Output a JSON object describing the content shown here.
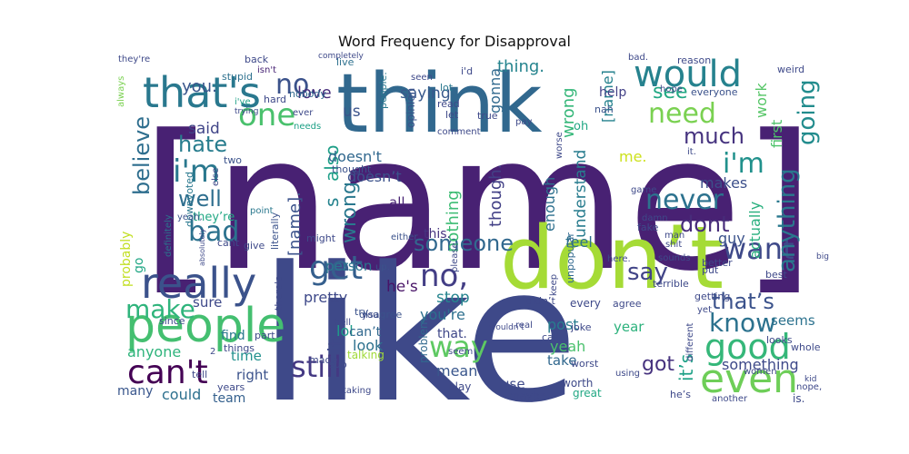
{
  "chart_data": {
    "type": "wordcloud",
    "title": "Word Frequency for Disapproval",
    "background": "#ffffff",
    "words": [
      {
        "text": "[name]",
        "color": "#482173"
      },
      {
        "text": "like",
        "color": "#3e4989"
      },
      {
        "text": "think",
        "color": "#31688e"
      },
      {
        "text": "don’t",
        "color": "#a5db36"
      },
      {
        "text": "people",
        "color": "#44bf70"
      },
      {
        "text": "would",
        "color": "#26828e"
      },
      {
        "text": "that's",
        "color": "#29788e"
      },
      {
        "text": "really",
        "color": "#3b528b"
      },
      {
        "text": "even",
        "color": "#6ece58"
      },
      {
        "text": "good",
        "color": "#35b779"
      },
      {
        "text": "can't",
        "color": "#440154"
      },
      {
        "text": "get",
        "color": "#355f8d"
      },
      {
        "text": "one",
        "color": "#4ac16d"
      },
      {
        "text": "no.",
        "color": "#3b528b"
      },
      {
        "text": "no,",
        "color": "#433e85"
      },
      {
        "text": "i'm",
        "color": "#2a788e"
      },
      {
        "text": "i'm",
        "color": "#21918c"
      },
      {
        "text": "want",
        "color": "#3e4989"
      },
      {
        "text": "need",
        "color": "#7ad151"
      },
      {
        "text": "never",
        "color": "#2c728e"
      },
      {
        "text": "still",
        "color": "#443983"
      },
      {
        "text": "way",
        "color": "#5ec962"
      },
      {
        "text": "know",
        "color": "#2c728e"
      },
      {
        "text": "see",
        "color": "#22a884"
      },
      {
        "text": "bad",
        "color": "#2c728e"
      },
      {
        "text": "that’s",
        "color": "#3b528b"
      },
      {
        "text": "say",
        "color": "#414487"
      },
      {
        "text": "going",
        "color": "#228c8d"
      },
      {
        "text": "anything",
        "color": "#2a788e"
      },
      {
        "text": "make",
        "color": "#2fb47c"
      },
      {
        "text": "someone",
        "color": "#31688e"
      },
      {
        "text": "dont",
        "color": "#472c7a"
      },
      {
        "text": "much",
        "color": "#46337f"
      },
      {
        "text": "hate",
        "color": "#287d8e"
      },
      {
        "text": "believe",
        "color": "#2e6e8e"
      },
      {
        "text": "well",
        "color": "#2e6e8e"
      },
      {
        "text": "got",
        "color": "#46327e"
      },
      {
        "text": "it",
        "color": "#3f4889"
      },
      {
        "text": "it’s",
        "color": "#1fa187"
      },
      {
        "text": "s",
        "color": "#25838e"
      },
      {
        "text": "also",
        "color": "#1f9f88"
      },
      {
        "text": "wrong",
        "color": "#2a788e"
      },
      {
        "text": "wrong",
        "color": "#35b779"
      },
      {
        "text": "[name].",
        "color": "#3b528b"
      },
      {
        "text": "love",
        "color": "#472d7b"
      },
      {
        "text": "you.",
        "color": "#39558c"
      },
      {
        "text": "said",
        "color": "#404588"
      },
      {
        "text": "saying",
        "color": "#38588c"
      },
      {
        "text": "thing.",
        "color": "#25848e"
      },
      {
        "text": "gonna",
        "color": "#30698e"
      },
      {
        "text": "[name]",
        "color": "#26828e"
      },
      {
        "text": "us",
        "color": "#3a538b"
      },
      {
        "text": "doesn't",
        "color": "#31688e"
      },
      {
        "text": "doesn’t",
        "color": "#3b528b"
      },
      {
        "text": "nothing",
        "color": "#3dbc74"
      },
      {
        "text": "though.",
        "color": "#424086"
      },
      {
        "text": "enough",
        "color": "#2d708e"
      },
      {
        "text": "understand",
        "color": "#287c8e"
      },
      {
        "text": "actually",
        "color": "#2ab07f"
      },
      {
        "text": "first",
        "color": "#4ec36b"
      },
      {
        "text": "work",
        "color": "#56c667"
      },
      {
        "text": "makes",
        "color": "#3c4f8a"
      },
      {
        "text": "guy",
        "color": "#3b528b"
      },
      {
        "text": "feel",
        "color": "#2d718e"
      },
      {
        "text": "pretty",
        "color": "#3e4989"
      },
      {
        "text": "he's",
        "color": "#481467"
      },
      {
        "text": "stop",
        "color": "#25848e"
      },
      {
        "text": "this.",
        "color": "#46337f"
      },
      {
        "text": "person",
        "color": "#2a768e"
      },
      {
        "text": "all.",
        "color": "#482374"
      },
      {
        "text": "lol",
        "color": "#1e9c89"
      },
      {
        "text": "look",
        "color": "#2d718e"
      },
      {
        "text": "can’t",
        "color": "#31688e"
      },
      {
        "text": "that.",
        "color": "#3f4788"
      },
      {
        "text": "you're",
        "color": "#2d708e"
      },
      {
        "text": "mean",
        "color": "#39568c"
      },
      {
        "text": "post",
        "color": "#287c8e"
      },
      {
        "text": "yeah",
        "color": "#4ac16d"
      },
      {
        "text": "take",
        "color": "#31688e"
      },
      {
        "text": "use",
        "color": "#3e4a89"
      },
      {
        "text": "something",
        "color": "#3e4989"
      },
      {
        "text": "seems",
        "color": "#2c728e"
      },
      {
        "text": "year",
        "color": "#2db27d"
      },
      {
        "text": "right",
        "color": "#3b528b"
      },
      {
        "text": "time",
        "color": "#21908d"
      },
      {
        "text": "sure",
        "color": "#3e4989"
      },
      {
        "text": "find",
        "color": "#2a788e"
      },
      {
        "text": "could",
        "color": "#2d708e"
      },
      {
        "text": "team",
        "color": "#34608d"
      },
      {
        "text": "anyone",
        "color": "#2fb47c"
      },
      {
        "text": "many",
        "color": "#39568c"
      },
      {
        "text": "probably",
        "color": "#c2df23"
      },
      {
        "text": "go",
        "color": "#22a785"
      },
      {
        "text": "help",
        "color": "#424086"
      },
      {
        "text": "oh",
        "color": "#22a785"
      },
      {
        "text": "me.",
        "color": "#cde11d"
      },
      {
        "text": "everyone",
        "color": "#3b528b"
      },
      {
        "text": "nah",
        "color": "#3b528b"
      },
      {
        "text": "read",
        "color": "#3f4889"
      },
      {
        "text": "let",
        "color": "#3e4989"
      },
      {
        "text": "lot",
        "color": "#2a788e"
      },
      {
        "text": "true",
        "color": "#3e4989"
      },
      {
        "text": "opinion",
        "color": "#3b528b"
      },
      {
        "text": "i'd",
        "color": "#3e4989"
      },
      {
        "text": "people.",
        "color": "#29788e"
      },
      {
        "text": "live",
        "color": "#2d708e"
      },
      {
        "text": "nobody",
        "color": "#31688e"
      },
      {
        "text": "hard",
        "color": "#3e4989"
      },
      {
        "text": "stupid",
        "color": "#2d708e"
      },
      {
        "text": "back",
        "color": "#3e4989"
      },
      {
        "text": "isn't",
        "color": "#482475"
      },
      {
        "text": "they're",
        "color": "#3e4989"
      },
      {
        "text": "i've",
        "color": "#1fa187"
      },
      {
        "text": "ever",
        "color": "#3e4989"
      },
      {
        "text": "needs",
        "color": "#1fa187"
      },
      {
        "text": "thought",
        "color": "#3b528b"
      },
      {
        "text": "downvoted",
        "color": "#2a788e"
      },
      {
        "text": "always",
        "color": "#7ad151"
      },
      {
        "text": "definitely",
        "color": "#2c728e"
      },
      {
        "text": "two",
        "color": "#3b528b"
      },
      {
        "text": "point",
        "color": "#2a788e"
      },
      {
        "text": "literally",
        "color": "#3b528b"
      },
      {
        "text": "they’re",
        "color": "#22a884"
      },
      {
        "text": "cant",
        "color": "#3e4989"
      },
      {
        "text": "give",
        "color": "#3e4989"
      },
      {
        "text": "might",
        "color": "#3e4989"
      },
      {
        "text": "yeah,",
        "color": "#3b528b"
      },
      {
        "text": "either.",
        "color": "#3b528b"
      },
      {
        "text": "unpopular",
        "color": "#31688e"
      },
      {
        "text": "since",
        "color": "#3e4989"
      },
      {
        "text": "part",
        "color": "#3e4989"
      },
      {
        "text": "there's",
        "color": "#3e4989"
      },
      {
        "text": "disagree",
        "color": "#3b528b"
      },
      {
        "text": "up.",
        "color": "#3b528b"
      },
      {
        "text": "things",
        "color": "#3e4989"
      },
      {
        "text": "try",
        "color": "#3b528b"
      },
      {
        "text": "you,",
        "color": "#3e4989"
      },
      {
        "text": "sub",
        "color": "#3e4989"
      },
      {
        "text": "talking",
        "color": "#a0da39"
      },
      {
        "text": "made",
        "color": "#3e4989"
      },
      {
        "text": "problem",
        "color": "#31688e"
      },
      {
        "text": "play",
        "color": "#3e4989"
      },
      {
        "text": "years",
        "color": "#3e4989"
      },
      {
        "text": "tell",
        "color": "#3e4989"
      },
      {
        "text": "worst",
        "color": "#3e4989"
      },
      {
        "text": "maybe",
        "color": "#3e4989"
      },
      {
        "text": "worth",
        "color": "#3e4989"
      },
      {
        "text": "great",
        "color": "#22a884"
      },
      {
        "text": "joke",
        "color": "#3e4989"
      },
      {
        "text": "call",
        "color": "#3e4989"
      },
      {
        "text": "every",
        "color": "#3e4989"
      },
      {
        "text": "didn’t",
        "color": "#3e4989"
      },
      {
        "text": "agree",
        "color": "#3e4989"
      },
      {
        "text": "getting",
        "color": "#3e4989"
      },
      {
        "text": "put",
        "color": "#3e4989"
      },
      {
        "text": "terrible",
        "color": "#3e4989"
      },
      {
        "text": "better",
        "color": "#3e4989"
      },
      {
        "text": "best",
        "color": "#3e4989"
      },
      {
        "text": "here.",
        "color": "#3e4989"
      },
      {
        "text": "keep",
        "color": "#3e4989"
      },
      {
        "text": "man",
        "color": "#3e4989"
      },
      {
        "text": "fake",
        "color": "#3e4989"
      },
      {
        "text": "damn",
        "color": "#3e4989"
      },
      {
        "text": "shit",
        "color": "#3e4989"
      },
      {
        "text": "game",
        "color": "#3e4989"
      },
      {
        "text": "looks",
        "color": "#3e4989"
      },
      {
        "text": "whole",
        "color": "#3e4989"
      },
      {
        "text": "using",
        "color": "#3e4989"
      },
      {
        "text": "women",
        "color": "#3e4989"
      },
      {
        "text": "another",
        "color": "#3e4989"
      },
      {
        "text": "he’s",
        "color": "#3e4989"
      },
      {
        "text": "is.",
        "color": "#3e4989"
      },
      {
        "text": "weird",
        "color": "#3e4989"
      },
      {
        "text": "reason",
        "color": "#3e4989"
      },
      {
        "text": "bad.",
        "color": "#3e4989"
      },
      {
        "text": "hope",
        "color": "#3e4989"
      },
      {
        "text": "pay",
        "color": "#3e4989"
      },
      {
        "text": "seen",
        "color": "#3e4989"
      },
      {
        "text": "comment",
        "color": "#3e4989"
      },
      {
        "text": "worse",
        "color": "#3e4989"
      },
      {
        "text": "it.",
        "color": "#3e4989"
      },
      {
        "text": "yet",
        "color": "#3e4989"
      },
      {
        "text": "different",
        "color": "#3e4989"
      },
      {
        "text": "nope,",
        "color": "#3e4989"
      },
      {
        "text": "kid",
        "color": "#3e4989"
      },
      {
        "text": "sounds",
        "color": "#3e4989"
      },
      {
        "text": "absolutely",
        "color": "#3e4989"
      },
      {
        "text": "else",
        "color": "#3e4989"
      },
      {
        "text": "trying",
        "color": "#3e4989"
      },
      {
        "text": "completely",
        "color": "#3e4989"
      },
      {
        "text": "taking",
        "color": "#3e4989"
      },
      {
        "text": "seem",
        "color": "#3e4989"
      },
      {
        "text": "wouldn't",
        "color": "#3e4989"
      },
      {
        "text": "hell",
        "color": "#3e4989"
      },
      {
        "text": "real",
        "color": "#3e4989"
      },
      {
        "text": "big",
        "color": "#3e4989"
      },
      {
        "text": "please",
        "color": "#3e4989"
      },
      {
        "text": "2",
        "color": "#3e4989"
      }
    ]
  }
}
